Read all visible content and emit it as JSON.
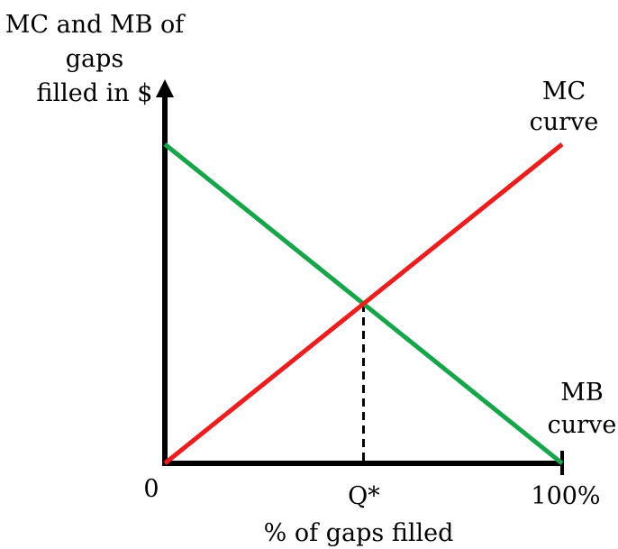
{
  "chart_data": {
    "type": "line",
    "ylabel": [
      "MC and MB of",
      "gaps",
      "filled in $"
    ],
    "xlabel": "% of gaps filled",
    "x_ticks": {
      "origin": "0",
      "equilibrium": "Q*",
      "max": "100%"
    },
    "xlim": [
      0,
      100
    ],
    "ylim": [
      0,
      100
    ],
    "grid": false,
    "legend": "none",
    "series": [
      {
        "name": "MC curve",
        "label_lines": [
          "MC",
          "curve"
        ],
        "color": "#ee1c1c",
        "x": [
          0,
          100
        ],
        "y": [
          0,
          100
        ]
      },
      {
        "name": "MB curve",
        "label_lines": [
          "MB",
          "curve"
        ],
        "color": "#16a64a",
        "x": [
          0,
          100
        ],
        "y": [
          100,
          0
        ]
      }
    ],
    "equilibrium": {
      "x": 50,
      "y": 50,
      "dashed_drop_line": true
    }
  }
}
